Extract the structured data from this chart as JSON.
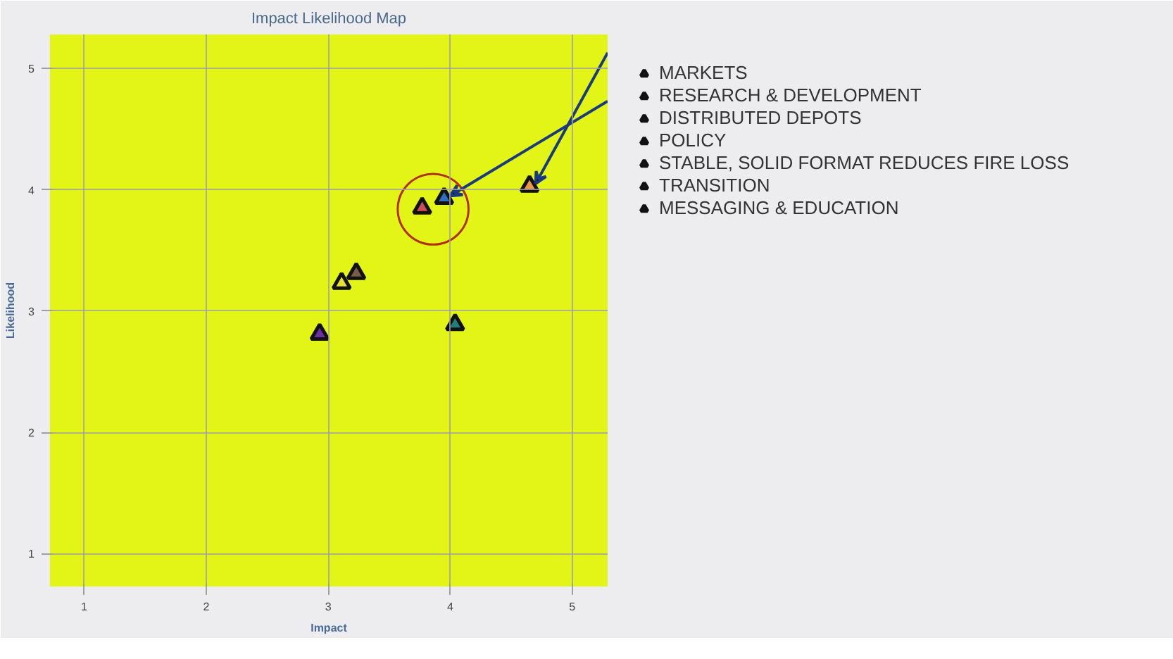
{
  "chart_data": {
    "type": "scatter",
    "title": "Impact Likelihood Map",
    "xlabel": "Impact",
    "ylabel": "Likelihood",
    "marker": "triangle",
    "grid": true,
    "legend": "top right",
    "xlim": [
      0.72,
      5.29
    ],
    "ylim": [
      0.73,
      5.28
    ],
    "xticks": [
      1,
      2,
      3,
      4,
      5
    ],
    "yticks": [
      1,
      2,
      3,
      4,
      5
    ],
    "series": [
      {
        "name": "MARKETS",
        "color": "#e8964a",
        "x": [
          4.65
        ],
        "values": [
          4.03
        ]
      },
      {
        "name": "RESEARCH & DEVELOPMENT",
        "color": "#2f6fc0",
        "x": [
          3.95
        ],
        "values": [
          3.93
        ]
      },
      {
        "name": "DISTRIBUTED DEPOTS",
        "color": "#c8505a",
        "x": [
          3.77
        ],
        "values": [
          3.85
        ]
      },
      {
        "name": "POLICY",
        "color": "#1f7f7a",
        "x": [
          4.04
        ],
        "values": [
          2.89
        ]
      },
      {
        "name": "STABLE, SOLID FORMAT REDUCES FIRE LOSS",
        "color": "#7a5a48",
        "x": [
          3.23
        ],
        "values": [
          3.31
        ]
      },
      {
        "name": "TRANSITION",
        "color": "#e8e030",
        "x": [
          3.11
        ],
        "values": [
          3.23
        ]
      },
      {
        "name": "MESSAGING & EDUCATION",
        "color": "#6a2fa8",
        "x": [
          2.93
        ],
        "values": [
          2.81
        ]
      }
    ]
  }
}
